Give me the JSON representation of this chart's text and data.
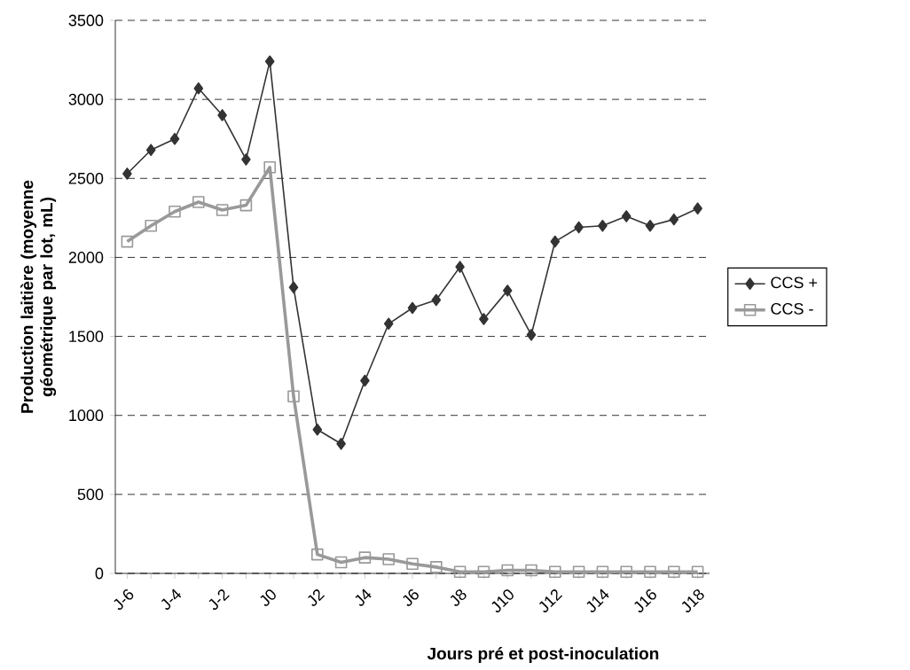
{
  "chart_data": {
    "type": "line",
    "xlabel": "Jours pré et post-inoculation",
    "ylabel": "Production laitière (moyenne géométrique par lot, mL)",
    "categories": [
      "J-6",
      null,
      "J-4",
      null,
      "J-2",
      null,
      "J0",
      null,
      "J2",
      null,
      "J4",
      null,
      "J6",
      null,
      "J8",
      null,
      "J10",
      null,
      "J12",
      null,
      "J14",
      null,
      "J16",
      null,
      "J18"
    ],
    "series": [
      {
        "name": "CCS +",
        "color": "#333333",
        "marker": "diamond",
        "values": [
          2530,
          2680,
          2750,
          3070,
          2900,
          2620,
          3240,
          1810,
          910,
          820,
          1220,
          1580,
          1680,
          1730,
          1940,
          1610,
          1790,
          1510,
          2100,
          2190,
          2200,
          2260,
          2200,
          2240,
          2310
        ]
      },
      {
        "name": "CCS -",
        "color": "#999999",
        "marker": "square",
        "values": [
          2100,
          2200,
          2290,
          2350,
          2300,
          2330,
          2570,
          1120,
          120,
          70,
          100,
          90,
          60,
          40,
          10,
          10,
          20,
          20,
          10,
          10,
          10,
          10,
          10,
          10,
          10
        ]
      }
    ],
    "ylim": [
      0,
      3500
    ],
    "yticks": [
      0,
      500,
      1000,
      1500,
      2000,
      2500,
      3000,
      3500
    ],
    "grid": "y",
    "legend": "right",
    "line_style": "solid"
  }
}
